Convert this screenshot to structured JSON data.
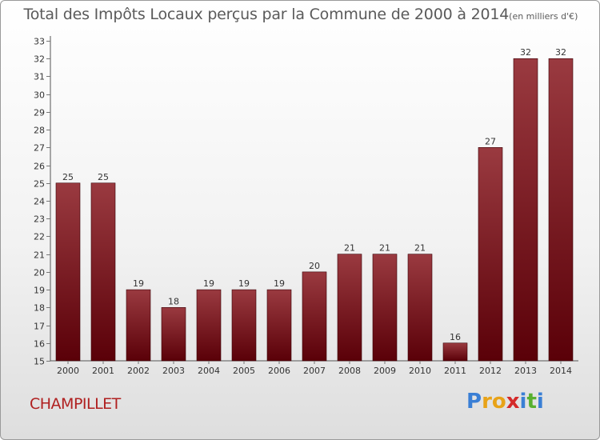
{
  "title": "Total des Impôts Locaux perçus par la Commune de 2000 à 2014",
  "subtitle": "(en milliers d'€)",
  "commune": "CHAMPILLET",
  "logo": {
    "letters": [
      {
        "char": "P",
        "color": "#3a7fd5"
      },
      {
        "char": "r",
        "color": "#e8a318"
      },
      {
        "char": "o",
        "color": "#e8a318"
      },
      {
        "char": "x",
        "color": "#d42a2a"
      },
      {
        "char": "i",
        "color": "#3a7fd5"
      },
      {
        "char": "t",
        "color": "#58b030"
      },
      {
        "char": "i",
        "color": "#3a7fd5"
      }
    ]
  },
  "colors": {
    "bar_top": "#9a3a40",
    "bar_bottom": "#5a0008",
    "bar_stroke": "#3a0006",
    "axis": "#555555",
    "tick": "#777777"
  },
  "chart_data": {
    "type": "bar",
    "categories": [
      "2000",
      "2001",
      "2002",
      "2003",
      "2004",
      "2005",
      "2006",
      "2007",
      "2008",
      "2009",
      "2010",
      "2011",
      "2012",
      "2013",
      "2014"
    ],
    "values": [
      25,
      25,
      19,
      18,
      19,
      19,
      19,
      20,
      21,
      21,
      21,
      16,
      27,
      32,
      32
    ],
    "data_labels": [
      "25",
      "25",
      "19",
      "18",
      "19",
      "19",
      "19",
      "20",
      "21",
      "21",
      "21",
      "16",
      "27",
      "32",
      "32"
    ],
    "ylim": [
      15,
      33
    ],
    "yticks": [
      15,
      16,
      17,
      18,
      19,
      20,
      21,
      22,
      23,
      24,
      25,
      26,
      27,
      28,
      29,
      30,
      31,
      32,
      33
    ],
    "grid": false,
    "legend": "none",
    "xlabel": "",
    "ylabel": ""
  }
}
